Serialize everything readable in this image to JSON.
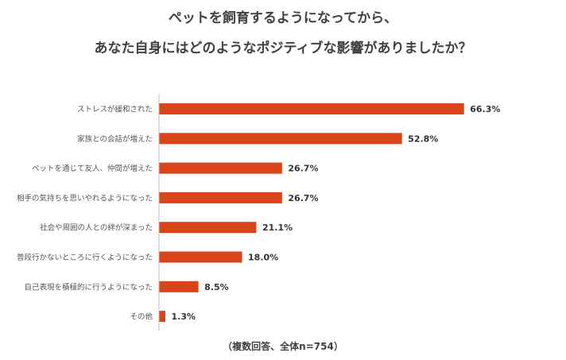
{
  "chart_data": {
    "type": "bar",
    "orientation": "horizontal",
    "title_lines": [
      "ペットを飼育するようになってから、",
      "あなた自身にはどのようなポジティブな影響がありましたか？"
    ],
    "categories": [
      "ストレスが緩和された",
      "家族との会話が増えた",
      "ペットを通じて友人、仲間が増えた",
      "相手の気持ちを思いやれるようになった",
      "社会や周囲の人との絆が深まった",
      "普段行かないところに行くようになった",
      "自己表現を積極的に行うようになった",
      "その他"
    ],
    "values": [
      66.3,
      52.8,
      26.7,
      26.7,
      21.1,
      18.0,
      8.5,
      1.3
    ],
    "value_labels": [
      "66.3%",
      "52.8%",
      "26.7%",
      "26.7%",
      "21.1%",
      "18.0%",
      "8.5%",
      "1.3%"
    ],
    "xlim": [
      0,
      100
    ],
    "grid": false,
    "bar_color": "#d9441a",
    "note": "（複数回答、全体n=754）"
  }
}
